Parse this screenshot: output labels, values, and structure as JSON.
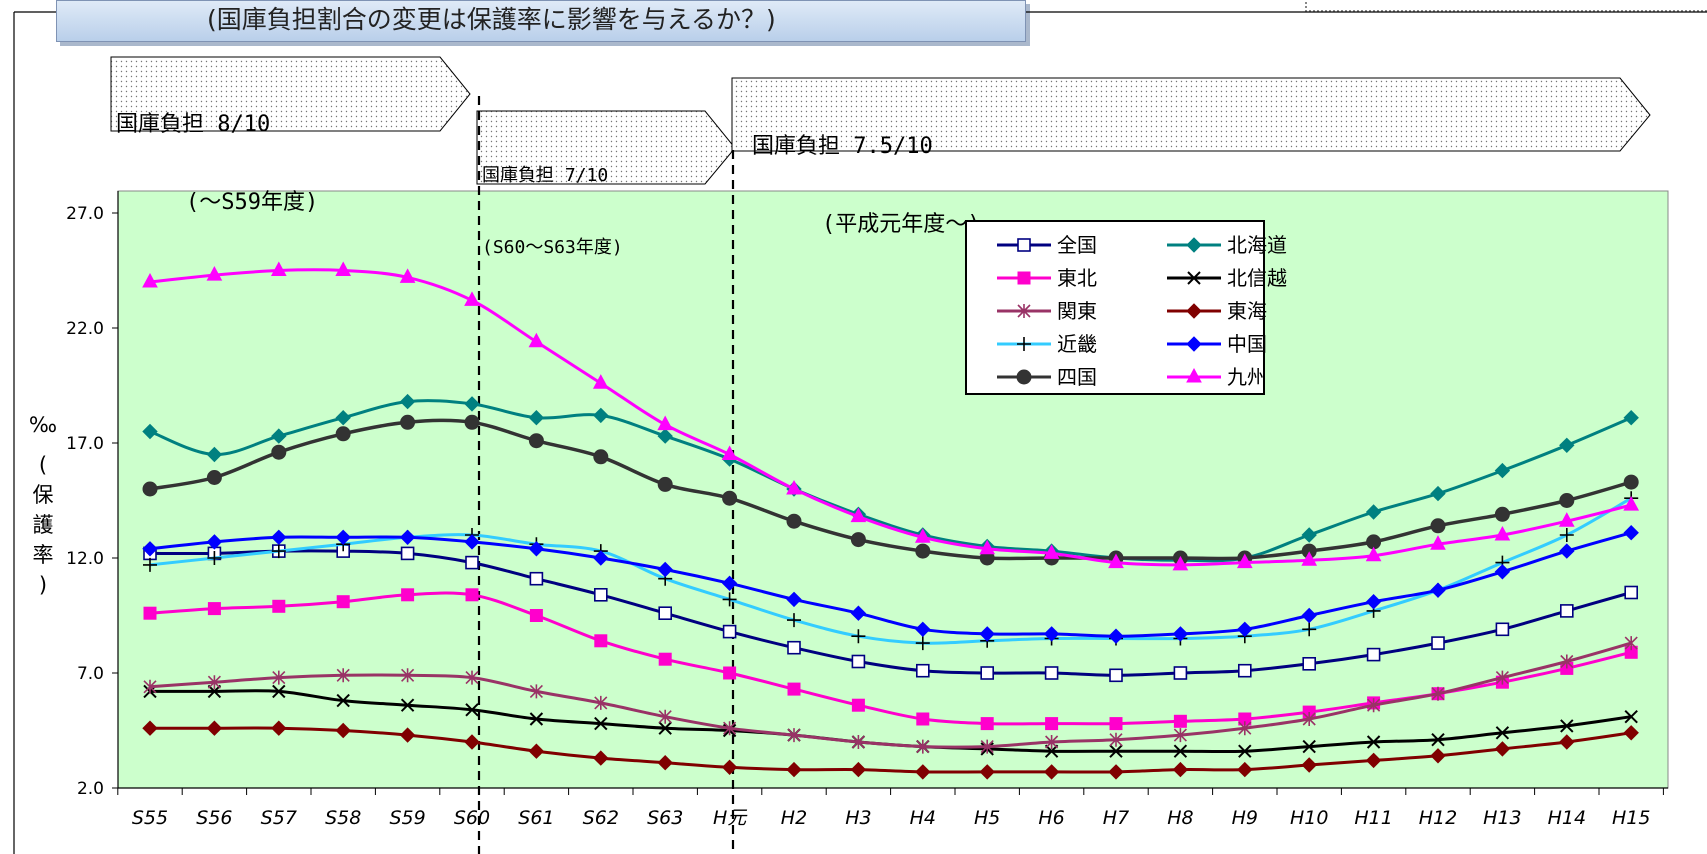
{
  "header": {
    "title": "(国庫負担割合の変更は保護率に影響を与えるか？)"
  },
  "phases": [
    {
      "line1": "国庫負担 8/10",
      "line2": "(～S59年度)"
    },
    {
      "line1": "国庫負担 7/10",
      "line2": "(S60～S63年度)"
    },
    {
      "line1": "国庫負担 7.5/10",
      "line2": "(平成元年度～)"
    }
  ],
  "chart_data": {
    "type": "line",
    "title": "",
    "ylabel": "‰ (保護率)",
    "ylabel_unit": "‰",
    "ylabel_parts": [
      "(",
      "保",
      "護",
      "率",
      ")"
    ],
    "ylim": [
      2.0,
      27.0
    ],
    "yticks": [
      "27.0",
      "22.0",
      "17.0",
      "12.0",
      "7.0",
      "2.0"
    ],
    "legend_position": "top-right",
    "grid": false,
    "background": "#ccffcc",
    "categories": [
      "S55",
      "S56",
      "S57",
      "S58",
      "S59",
      "S60",
      "S61",
      "S62",
      "S63",
      "H元",
      "H2",
      "H3",
      "H4",
      "H5",
      "H6",
      "H7",
      "H8",
      "H9",
      "H10",
      "H11",
      "H12",
      "H13",
      "H14",
      "H15"
    ],
    "series": [
      {
        "name": "全国",
        "color": "#000080",
        "marker": "square-open",
        "values": [
          12.2,
          12.2,
          12.3,
          12.3,
          12.2,
          11.8,
          11.1,
          10.4,
          9.6,
          8.8,
          8.1,
          7.5,
          7.1,
          7.0,
          7.0,
          6.9,
          7.0,
          7.1,
          7.4,
          7.8,
          8.3,
          8.9,
          9.7,
          10.5
        ]
      },
      {
        "name": "北海道",
        "color": "#008080",
        "marker": "diamond",
        "values": [
          17.5,
          16.5,
          17.3,
          18.1,
          18.8,
          18.7,
          18.1,
          18.2,
          17.3,
          16.3,
          15.0,
          13.9,
          13.0,
          12.5,
          12.3,
          12.0,
          11.9,
          12.0,
          13.0,
          14.0,
          14.8,
          15.8,
          16.9,
          18.1
        ]
      },
      {
        "name": "東北",
        "color": "#ff00cc",
        "marker": "square",
        "values": [
          9.6,
          9.8,
          9.9,
          10.1,
          10.4,
          10.4,
          9.5,
          8.4,
          7.6,
          7.0,
          6.3,
          5.6,
          5.0,
          4.8,
          4.8,
          4.8,
          4.9,
          5.0,
          5.3,
          5.7,
          6.1,
          6.6,
          7.2,
          7.9
        ]
      },
      {
        "name": "北信越",
        "color": "#000000",
        "marker": "x",
        "values": [
          6.2,
          6.2,
          6.2,
          5.8,
          5.6,
          5.4,
          5.0,
          4.8,
          4.6,
          4.5,
          4.3,
          4.0,
          3.8,
          3.7,
          3.6,
          3.6,
          3.6,
          3.6,
          3.8,
          4.0,
          4.1,
          4.4,
          4.7,
          5.1
        ]
      },
      {
        "name": "関東",
        "color": "#993366",
        "marker": "star",
        "values": [
          6.4,
          6.6,
          6.8,
          6.9,
          6.9,
          6.8,
          6.2,
          5.7,
          5.1,
          4.6,
          4.3,
          4.0,
          3.8,
          3.8,
          4.0,
          4.1,
          4.3,
          4.6,
          5.0,
          5.6,
          6.1,
          6.8,
          7.5,
          8.3
        ]
      },
      {
        "name": "東海",
        "color": "#800000",
        "marker": "diamond",
        "values": [
          4.6,
          4.6,
          4.6,
          4.5,
          4.3,
          4.0,
          3.6,
          3.3,
          3.1,
          2.9,
          2.8,
          2.8,
          2.7,
          2.7,
          2.7,
          2.7,
          2.8,
          2.8,
          3.0,
          3.2,
          3.4,
          3.7,
          4.0,
          4.4
        ]
      },
      {
        "name": "近畿",
        "color": "#33ccff",
        "marker": "plus",
        "values": [
          11.7,
          12.0,
          12.3,
          12.6,
          12.9,
          13.0,
          12.6,
          12.3,
          11.1,
          10.2,
          9.3,
          8.6,
          8.3,
          8.4,
          8.5,
          8.5,
          8.5,
          8.6,
          8.9,
          9.7,
          10.6,
          11.8,
          13.0,
          14.6
        ]
      },
      {
        "name": "中国",
        "color": "#0000ff",
        "marker": "diamond",
        "values": [
          12.4,
          12.7,
          12.9,
          12.9,
          12.9,
          12.7,
          12.4,
          12.0,
          11.5,
          10.9,
          10.2,
          9.6,
          8.9,
          8.7,
          8.7,
          8.6,
          8.7,
          8.9,
          9.5,
          10.1,
          10.6,
          11.4,
          12.3,
          13.1
        ]
      },
      {
        "name": "四国",
        "color": "#333333",
        "marker": "circle",
        "values": [
          15.0,
          15.5,
          16.6,
          17.4,
          17.9,
          17.9,
          17.1,
          16.4,
          15.2,
          14.6,
          13.6,
          12.8,
          12.3,
          12.0,
          12.0,
          12.0,
          12.0,
          12.0,
          12.3,
          12.7,
          13.4,
          13.9,
          14.5,
          15.3
        ]
      },
      {
        "name": "九州",
        "color": "#ff00ff",
        "marker": "triangle",
        "values": [
          24.0,
          24.3,
          24.5,
          24.5,
          24.2,
          23.2,
          21.4,
          19.6,
          17.8,
          16.5,
          15.0,
          13.8,
          12.9,
          12.4,
          12.2,
          11.8,
          11.7,
          11.8,
          11.9,
          12.1,
          12.6,
          13.0,
          13.6,
          14.3
        ]
      }
    ]
  }
}
